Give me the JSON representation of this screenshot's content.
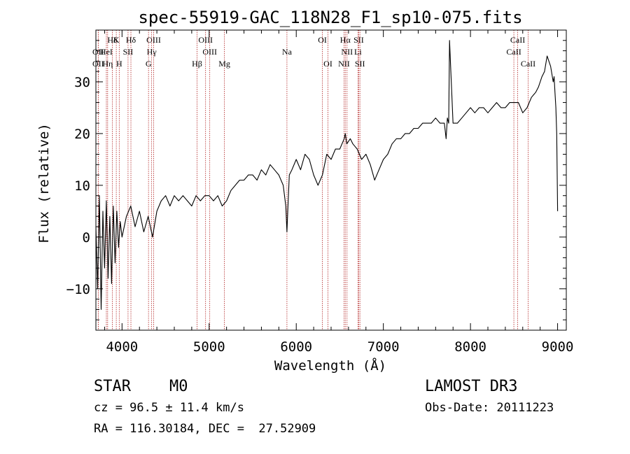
{
  "chart_data": {
    "type": "line",
    "title": "spec-55919-GAC_118N28_F1_sp10-075.fits",
    "xlabel": "Wavelength (Å)",
    "ylabel": "Flux (relative)",
    "xlim": [
      3700,
      9100
    ],
    "ylim": [
      -18,
      40
    ],
    "x_ticks": [
      4000,
      5000,
      6000,
      7000,
      8000,
      9000
    ],
    "y_ticks": [
      -10,
      0,
      10,
      20,
      30
    ],
    "grid": false,
    "series": [
      {
        "name": "flux",
        "x": [
          3700,
          3720,
          3740,
          3760,
          3780,
          3800,
          3820,
          3840,
          3860,
          3880,
          3900,
          3920,
          3940,
          3960,
          3980,
          4000,
          4050,
          4100,
          4150,
          4200,
          4250,
          4300,
          4350,
          4400,
          4450,
          4500,
          4550,
          4600,
          4650,
          4700,
          4750,
          4800,
          4850,
          4900,
          4950,
          5000,
          5050,
          5100,
          5150,
          5200,
          5250,
          5300,
          5350,
          5400,
          5450,
          5500,
          5550,
          5600,
          5650,
          5700,
          5750,
          5800,
          5850,
          5880,
          5893,
          5905,
          5920,
          5950,
          6000,
          6050,
          6100,
          6150,
          6200,
          6250,
          6300,
          6350,
          6400,
          6450,
          6500,
          6550,
          6563,
          6580,
          6620,
          6650,
          6700,
          6750,
          6800,
          6850,
          6900,
          6950,
          7000,
          7050,
          7100,
          7150,
          7200,
          7250,
          7300,
          7350,
          7400,
          7450,
          7500,
          7550,
          7600,
          7650,
          7700,
          7720,
          7735,
          7750,
          7760,
          7800,
          7850,
          7900,
          7950,
          8000,
          8050,
          8100,
          8150,
          8200,
          8250,
          8300,
          8350,
          8400,
          8450,
          8500,
          8550,
          8600,
          8650,
          8700,
          8750,
          8780,
          8800,
          8820,
          8850,
          8880,
          8900,
          8920,
          8950,
          8960,
          8970,
          8980,
          8990,
          9000
        ],
        "y": [
          2,
          -10,
          8,
          -14,
          5,
          -6,
          7,
          -8,
          4,
          -9,
          6,
          -5,
          5,
          -2,
          3,
          0,
          4,
          6,
          2,
          5,
          1,
          4,
          0,
          5,
          7,
          8,
          6,
          8,
          7,
          8,
          7,
          6,
          8,
          7,
          8,
          8,
          7,
          8,
          6,
          7,
          9,
          10,
          11,
          11,
          12,
          12,
          11,
          13,
          12,
          14,
          13,
          12,
          10,
          6,
          1,
          6,
          12,
          13,
          15,
          13,
          16,
          15,
          12,
          10,
          12,
          16,
          15,
          17,
          17,
          19,
          20,
          18,
          19,
          18,
          17,
          15,
          16,
          14,
          11,
          13,
          15,
          16,
          18,
          19,
          19,
          20,
          20,
          21,
          21,
          22,
          22,
          22,
          23,
          22,
          22,
          19,
          23,
          22,
          38,
          22,
          22,
          23,
          24,
          25,
          24,
          25,
          25,
          24,
          25,
          26,
          25,
          25,
          26,
          26,
          26,
          24,
          25,
          27,
          28,
          29,
          30,
          31,
          32,
          35,
          34,
          33,
          30,
          31,
          28,
          25,
          20,
          5
        ]
      }
    ],
    "lines": [
      {
        "name": "Hδ",
        "x": 3889,
        "row": 1
      },
      {
        "name": "K",
        "x": 3934,
        "row": 1
      },
      {
        "name": "Hδ",
        "x": 4102,
        "row": 1
      },
      {
        "name": "OIII",
        "x": 4363,
        "row": 1
      },
      {
        "name": "OIII",
        "x": 4959,
        "row": 1
      },
      {
        "name": "OI",
        "x": 6300,
        "row": 1
      },
      {
        "name": "Hα",
        "x": 6563,
        "row": 1
      },
      {
        "name": "SII",
        "x": 6717,
        "row": 1
      },
      {
        "name": "CaII",
        "x": 8542,
        "row": 1
      },
      {
        "name": "OII",
        "x": 3727,
        "row": 2
      },
      {
        "name": "HeI",
        "x": 3820,
        "row": 2
      },
      {
        "name": "SII",
        "x": 4069,
        "row": 2
      },
      {
        "name": "Hγ",
        "x": 4340,
        "row": 2
      },
      {
        "name": "OIII",
        "x": 5007,
        "row": 2
      },
      {
        "name": "Na",
        "x": 5893,
        "row": 2
      },
      {
        "name": "NII",
        "x": 6583,
        "row": 2
      },
      {
        "name": "Li",
        "x": 6708,
        "row": 2
      },
      {
        "name": "CaII",
        "x": 8498,
        "row": 2
      },
      {
        "name": "OII",
        "x": 3727,
        "row": 3
      },
      {
        "name": "Hη",
        "x": 3835,
        "row": 3
      },
      {
        "name": "H",
        "x": 3968,
        "row": 3
      },
      {
        "name": "G",
        "x": 4304,
        "row": 3
      },
      {
        "name": "Hβ",
        "x": 4861,
        "row": 3
      },
      {
        "name": "Mg",
        "x": 5175,
        "row": 3
      },
      {
        "name": "OI",
        "x": 6364,
        "row": 3
      },
      {
        "name": "NII",
        "x": 6548,
        "row": 3
      },
      {
        "name": "SII",
        "x": 6731,
        "row": 3
      },
      {
        "name": "CaII",
        "x": 8662,
        "row": 3
      }
    ],
    "colors": {
      "spectrum": "#000000",
      "lines": "#b22222",
      "axes": "#000000"
    }
  },
  "info": {
    "class": "STAR",
    "subclass": "M0",
    "survey": "LAMOST DR3",
    "cz": "cz = 96.5 ± 11.4 km/s",
    "obs_date": "Obs-Date: 20111223",
    "coords": "RA = 116.30184, DEC =  27.52909"
  }
}
